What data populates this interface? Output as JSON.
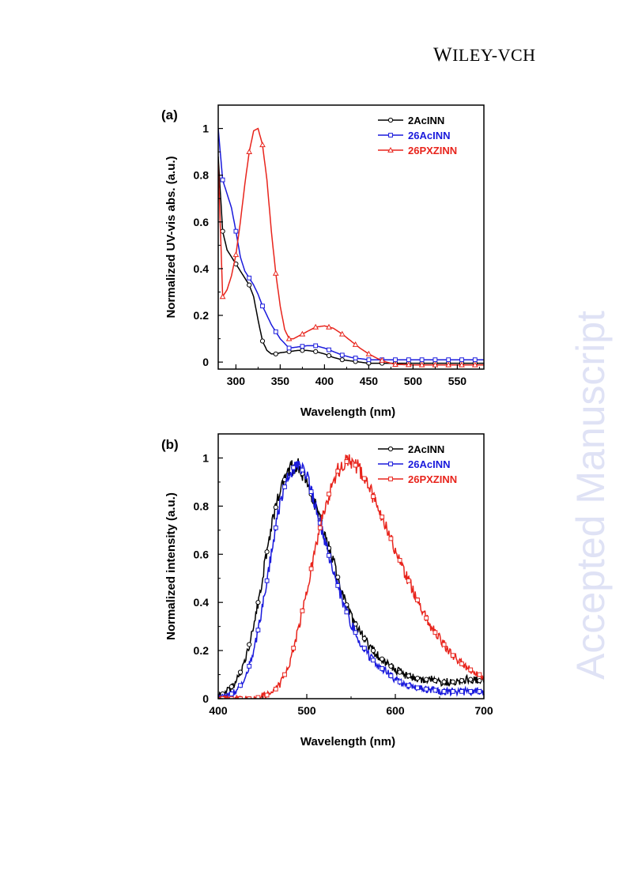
{
  "header": {
    "publisher_first": "W",
    "publisher_rest": "ILEY",
    "publisher_suffix": "-VCH"
  },
  "watermark": "Accepted Manuscript",
  "chart_data": [
    {
      "panel": "(a)",
      "type": "line",
      "xlabel": "Wavelength (nm)",
      "ylabel": "Normalized UV-vis abs. (a.u.)",
      "xlim": [
        280,
        580
      ],
      "ylim": [
        -0.03,
        1.1
      ],
      "xticks": [
        300,
        350,
        400,
        450,
        500,
        550
      ],
      "yticks": [
        0,
        0.2,
        0.4,
        0.6,
        0.8,
        1
      ],
      "ytick_labels": [
        "0",
        "0.2",
        "0.4",
        "0.6",
        "0.8",
        "1"
      ],
      "legend_position": "top-right",
      "series": [
        {
          "name": "2AcINN",
          "color": "#000000",
          "marker": "circle",
          "x": [
            280,
            285,
            290,
            295,
            300,
            305,
            310,
            315,
            320,
            325,
            330,
            335,
            340,
            345,
            350,
            360,
            370,
            380,
            390,
            400,
            410,
            420,
            430,
            440,
            450,
            460,
            470,
            480,
            500,
            520,
            540,
            560,
            580
          ],
          "y": [
            0.88,
            0.56,
            0.48,
            0.45,
            0.42,
            0.39,
            0.36,
            0.33,
            0.28,
            0.18,
            0.09,
            0.05,
            0.035,
            0.035,
            0.04,
            0.045,
            0.05,
            0.05,
            0.045,
            0.035,
            0.02,
            0.01,
            0.005,
            0.0,
            -0.005,
            -0.005,
            -0.005,
            -0.005,
            -0.005,
            -0.005,
            -0.005,
            -0.005,
            -0.005
          ]
        },
        {
          "name": "26AcINN",
          "color": "#1a1adc",
          "marker": "square",
          "x": [
            280,
            285,
            290,
            295,
            300,
            305,
            310,
            315,
            320,
            325,
            330,
            335,
            340,
            345,
            350,
            360,
            370,
            380,
            390,
            400,
            410,
            420,
            430,
            440,
            450,
            460,
            470,
            480,
            500,
            520,
            540,
            560,
            580
          ],
          "y": [
            1.0,
            0.78,
            0.72,
            0.66,
            0.56,
            0.45,
            0.39,
            0.36,
            0.33,
            0.29,
            0.24,
            0.2,
            0.16,
            0.13,
            0.1,
            0.06,
            0.065,
            0.07,
            0.07,
            0.06,
            0.045,
            0.03,
            0.02,
            0.015,
            0.01,
            0.01,
            0.01,
            0.01,
            0.01,
            0.01,
            0.01,
            0.01,
            0.01
          ]
        },
        {
          "name": "26PXZINN",
          "color": "#e8241c",
          "marker": "triangle",
          "x": [
            280,
            285,
            290,
            295,
            300,
            305,
            310,
            315,
            320,
            325,
            330,
            335,
            340,
            345,
            350,
            355,
            360,
            365,
            370,
            375,
            380,
            385,
            390,
            400,
            410,
            420,
            430,
            440,
            450,
            460,
            470,
            480,
            500,
            520,
            540,
            560,
            580
          ],
          "y": [
            0.85,
            0.28,
            0.31,
            0.37,
            0.46,
            0.6,
            0.76,
            0.9,
            0.99,
            1.0,
            0.93,
            0.78,
            0.56,
            0.38,
            0.24,
            0.14,
            0.1,
            0.1,
            0.11,
            0.12,
            0.13,
            0.14,
            0.15,
            0.155,
            0.145,
            0.12,
            0.09,
            0.06,
            0.035,
            0.015,
            0.0,
            -0.01,
            -0.012,
            -0.012,
            -0.012,
            -0.012,
            -0.012
          ]
        }
      ]
    },
    {
      "panel": "(b)",
      "type": "line",
      "xlabel": "Wavelength (nm)",
      "ylabel": "Normalized intensity (a.u.)",
      "xlim": [
        400,
        700
      ],
      "ylim": [
        0,
        1.1
      ],
      "xticks": [
        400,
        500,
        600,
        700
      ],
      "yticks": [
        0,
        0.2,
        0.4,
        0.6,
        0.8,
        1
      ],
      "ytick_labels": [
        "0",
        "0.2",
        "0.4",
        "0.6",
        "0.8",
        "1"
      ],
      "legend_position": "top-right",
      "series": [
        {
          "name": "2AcINN",
          "color": "#000000",
          "marker": "circle",
          "x": [
            400,
            410,
            420,
            430,
            440,
            450,
            460,
            470,
            480,
            490,
            500,
            510,
            520,
            530,
            540,
            550,
            560,
            570,
            580,
            590,
            600,
            610,
            620,
            630,
            640,
            650,
            660,
            670,
            680,
            690,
            700
          ],
          "y": [
            0.01,
            0.03,
            0.07,
            0.15,
            0.3,
            0.5,
            0.72,
            0.87,
            0.95,
            0.97,
            0.9,
            0.8,
            0.68,
            0.57,
            0.44,
            0.34,
            0.28,
            0.22,
            0.18,
            0.15,
            0.12,
            0.1,
            0.09,
            0.08,
            0.08,
            0.07,
            0.07,
            0.07,
            0.08,
            0.08,
            0.07
          ]
        },
        {
          "name": "26AcINN",
          "color": "#1a1adc",
          "marker": "square",
          "x": [
            400,
            410,
            420,
            430,
            440,
            450,
            460,
            470,
            480,
            490,
            500,
            510,
            520,
            530,
            540,
            550,
            560,
            570,
            580,
            590,
            600,
            610,
            620,
            630,
            640,
            650,
            660,
            670,
            680,
            690,
            700
          ],
          "y": [
            0.0,
            0.01,
            0.03,
            0.08,
            0.19,
            0.38,
            0.6,
            0.82,
            0.94,
            0.98,
            0.92,
            0.8,
            0.66,
            0.53,
            0.41,
            0.31,
            0.24,
            0.18,
            0.14,
            0.11,
            0.08,
            0.06,
            0.05,
            0.04,
            0.04,
            0.03,
            0.03,
            0.03,
            0.03,
            0.03,
            0.03
          ]
        },
        {
          "name": "26PXZINN",
          "color": "#e8241c",
          "marker": "square",
          "x": [
            400,
            420,
            440,
            460,
            470,
            480,
            490,
            500,
            510,
            520,
            530,
            540,
            550,
            560,
            570,
            580,
            590,
            600,
            610,
            620,
            630,
            640,
            650,
            660,
            670,
            680,
            690,
            700
          ],
          "y": [
            0.0,
            0.0,
            0.0,
            0.02,
            0.06,
            0.14,
            0.28,
            0.45,
            0.63,
            0.79,
            0.91,
            0.98,
            0.99,
            0.95,
            0.88,
            0.8,
            0.71,
            0.62,
            0.53,
            0.45,
            0.37,
            0.3,
            0.25,
            0.2,
            0.16,
            0.13,
            0.11,
            0.09
          ]
        }
      ]
    }
  ]
}
